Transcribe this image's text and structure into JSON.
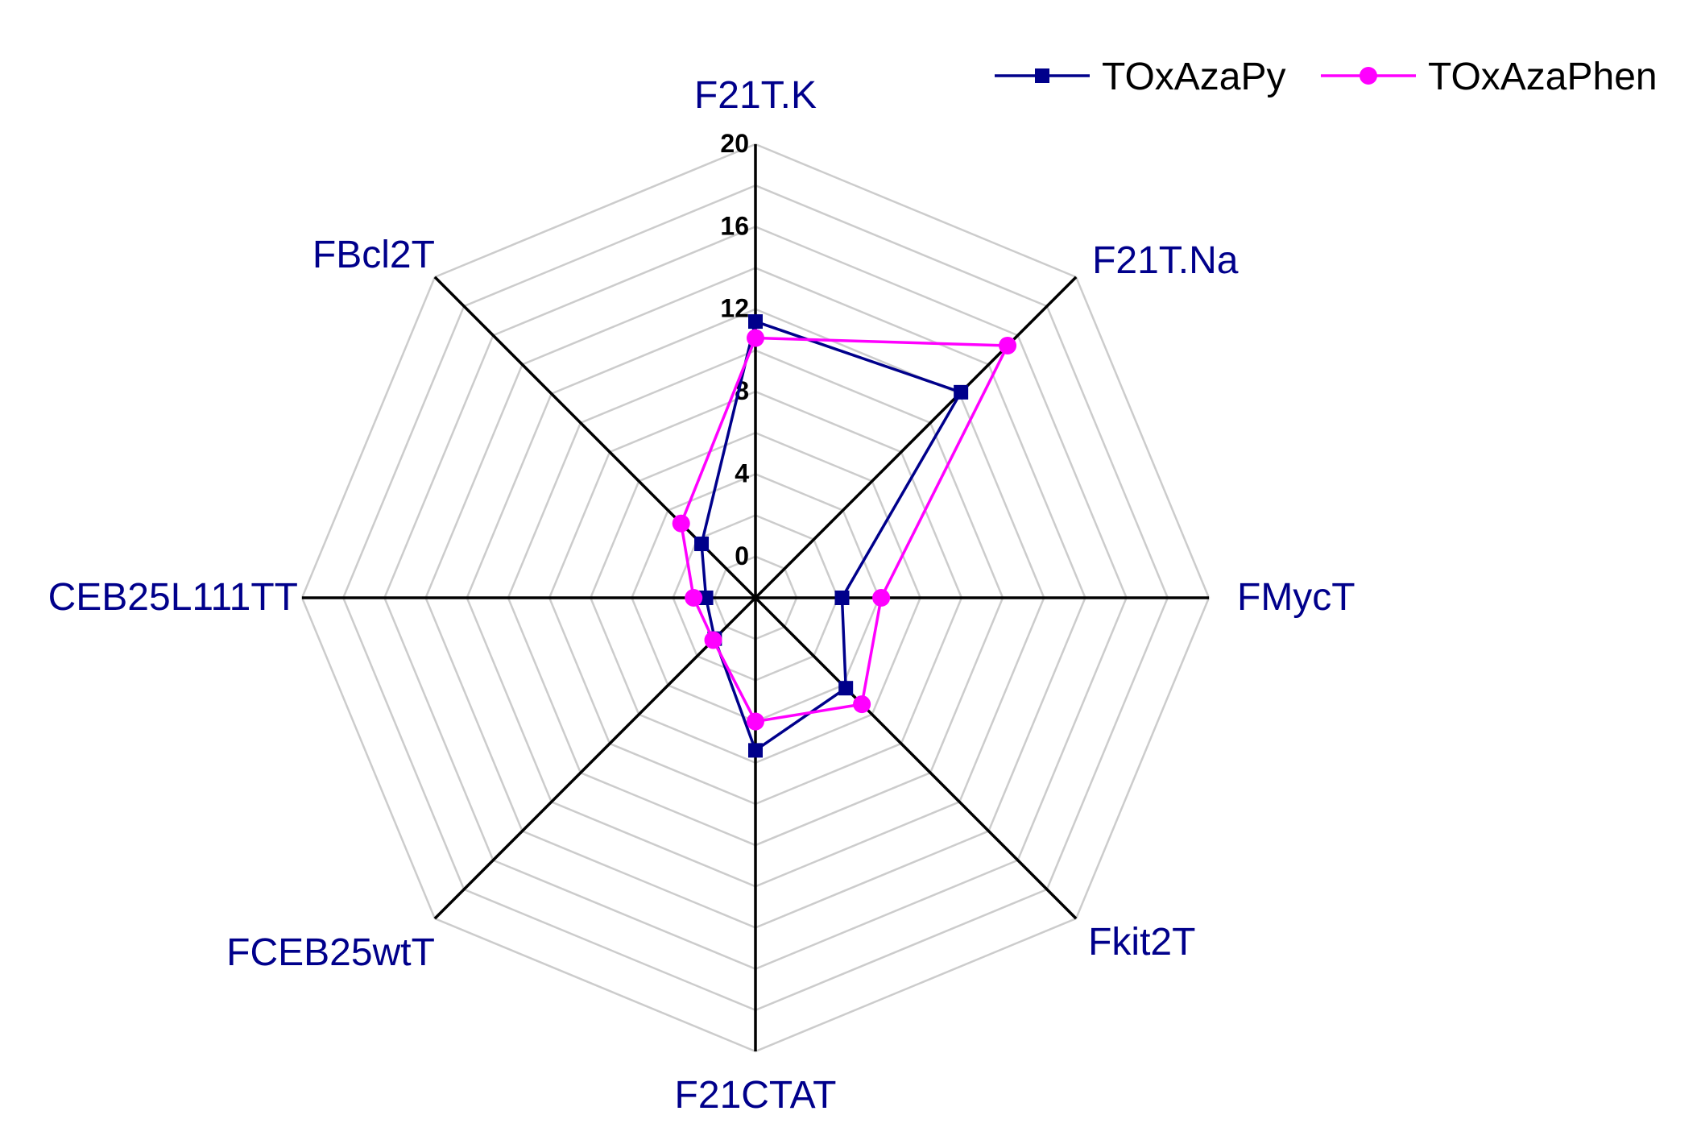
{
  "chart_data": {
    "type": "radar",
    "title": "",
    "categories": [
      "F21T.K",
      "F21T.Na",
      "FMycT",
      "Fkit2T",
      "F21CTAT",
      "FCEB25wtT",
      "CEB25L111TT",
      "FBcl2T"
    ],
    "r_axis": {
      "min": -2,
      "max": 20,
      "ticks": [
        0,
        4,
        8,
        12,
        16,
        20
      ],
      "grid": true
    },
    "series": [
      {
        "name": "TOxAzaPy",
        "color": "#00008b",
        "marker": "square",
        "values": [
          11.4,
          12.1,
          2.2,
          4.2,
          5.4,
          0.8,
          0.4,
          1.7
        ]
      },
      {
        "name": "TOxAzaPhen",
        "color": "#ff00ff",
        "marker": "circle",
        "values": [
          10.6,
          15.3,
          4.1,
          5.3,
          4.0,
          0.9,
          1.0,
          3.1
        ]
      }
    ],
    "legend": "top-right",
    "colors": {
      "axis": "#000000",
      "grid": "#cccccc",
      "category_text": "#00008b"
    }
  }
}
